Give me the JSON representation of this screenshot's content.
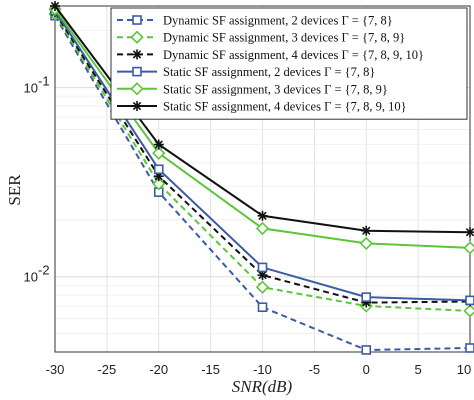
{
  "chart_data": {
    "type": "line",
    "title": "",
    "xlabel": "SNR(dB)",
    "ylabel": "SER",
    "xlim": [
      -30,
      10
    ],
    "ylim": [
      0.004,
      0.27
    ],
    "yscale": "log",
    "grid": true,
    "legend_position": "top-right",
    "x_ticks": [
      "-30",
      "-25",
      "-20",
      "-15",
      "-10",
      "-5",
      "0",
      "5",
      "10"
    ],
    "x_tick_values": [
      -30,
      -25,
      -20,
      -15,
      -10,
      -5,
      0,
      5,
      10
    ],
    "y_ticks": [
      {
        "value": 0.1,
        "base": "10",
        "exp": "-1"
      },
      {
        "value": 0.01,
        "base": "10",
        "exp": "-2"
      }
    ],
    "x": [
      -30,
      -20,
      -10,
      0,
      10
    ],
    "series": [
      {
        "name": "Dynamic SF assignment, 2 devices Γ = {7, 8}",
        "color": "#3b5ba5",
        "dash": true,
        "marker": "square",
        "values": [
          0.24,
          0.028,
          0.0069,
          0.0041,
          0.0042
        ]
      },
      {
        "name": "Dynamic SF assignment, 3 devices Γ = {7, 8, 9}",
        "color": "#5cc63a",
        "dash": true,
        "marker": "diamond",
        "values": [
          0.245,
          0.031,
          0.0088,
          0.007,
          0.0066
        ]
      },
      {
        "name": "Dynamic SF assignment, 4 devices Γ = {7, 8, 9, 10}",
        "color": "#111111",
        "dash": true,
        "marker": "star",
        "values": [
          0.25,
          0.034,
          0.0102,
          0.0073,
          0.0074
        ]
      },
      {
        "name": "Static SF assignment, 2 devices Γ = {7, 8}",
        "color": "#3b5ba5",
        "dash": false,
        "marker": "square",
        "values": [
          0.255,
          0.037,
          0.0112,
          0.0078,
          0.0075
        ]
      },
      {
        "name": "Static SF assignment, 3 devices Γ = {7, 8, 9}",
        "color": "#5cc63a",
        "dash": false,
        "marker": "diamond",
        "values": [
          0.26,
          0.045,
          0.018,
          0.015,
          0.0142
        ]
      },
      {
        "name": "Static SF assignment, 4 devices Γ = {7, 8, 9, 10}",
        "color": "#111111",
        "dash": false,
        "marker": "star",
        "values": [
          0.27,
          0.05,
          0.021,
          0.0175,
          0.0172
        ]
      }
    ]
  }
}
